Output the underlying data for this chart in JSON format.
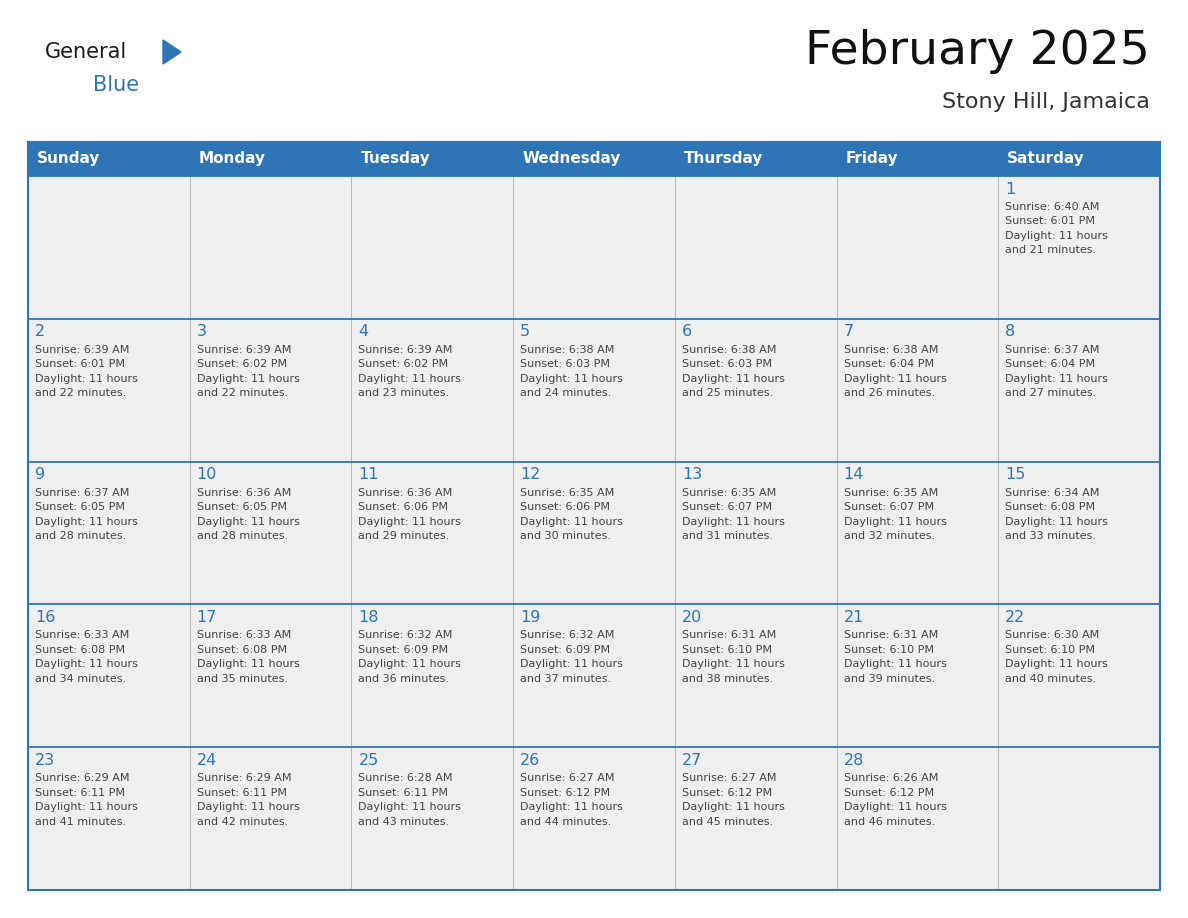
{
  "title": "February 2025",
  "subtitle": "Stony Hill, Jamaica",
  "header_bg": "#2E75B6",
  "header_text_color": "#FFFFFF",
  "cell_bg": "#EFEFEF",
  "day_number_color": "#2E75B6",
  "text_color": "#444444",
  "line_color": "#2E75B6",
  "grid_line_color": "#BBBBBB",
  "days_of_week": [
    "Sunday",
    "Monday",
    "Tuesday",
    "Wednesday",
    "Thursday",
    "Friday",
    "Saturday"
  ],
  "calendar_data": [
    [
      null,
      null,
      null,
      null,
      null,
      null,
      {
        "day": 1,
        "sunrise": "6:40 AM",
        "sunset": "6:01 PM",
        "daylight": "11 hours",
        "daylight2": "and 21 minutes."
      }
    ],
    [
      {
        "day": 2,
        "sunrise": "6:39 AM",
        "sunset": "6:01 PM",
        "daylight": "11 hours",
        "daylight2": "and 22 minutes."
      },
      {
        "day": 3,
        "sunrise": "6:39 AM",
        "sunset": "6:02 PM",
        "daylight": "11 hours",
        "daylight2": "and 22 minutes."
      },
      {
        "day": 4,
        "sunrise": "6:39 AM",
        "sunset": "6:02 PM",
        "daylight": "11 hours",
        "daylight2": "and 23 minutes."
      },
      {
        "day": 5,
        "sunrise": "6:38 AM",
        "sunset": "6:03 PM",
        "daylight": "11 hours",
        "daylight2": "and 24 minutes."
      },
      {
        "day": 6,
        "sunrise": "6:38 AM",
        "sunset": "6:03 PM",
        "daylight": "11 hours",
        "daylight2": "and 25 minutes."
      },
      {
        "day": 7,
        "sunrise": "6:38 AM",
        "sunset": "6:04 PM",
        "daylight": "11 hours",
        "daylight2": "and 26 minutes."
      },
      {
        "day": 8,
        "sunrise": "6:37 AM",
        "sunset": "6:04 PM",
        "daylight": "11 hours",
        "daylight2": "and 27 minutes."
      }
    ],
    [
      {
        "day": 9,
        "sunrise": "6:37 AM",
        "sunset": "6:05 PM",
        "daylight": "11 hours",
        "daylight2": "and 28 minutes."
      },
      {
        "day": 10,
        "sunrise": "6:36 AM",
        "sunset": "6:05 PM",
        "daylight": "11 hours",
        "daylight2": "and 28 minutes."
      },
      {
        "day": 11,
        "sunrise": "6:36 AM",
        "sunset": "6:06 PM",
        "daylight": "11 hours",
        "daylight2": "and 29 minutes."
      },
      {
        "day": 12,
        "sunrise": "6:35 AM",
        "sunset": "6:06 PM",
        "daylight": "11 hours",
        "daylight2": "and 30 minutes."
      },
      {
        "day": 13,
        "sunrise": "6:35 AM",
        "sunset": "6:07 PM",
        "daylight": "11 hours",
        "daylight2": "and 31 minutes."
      },
      {
        "day": 14,
        "sunrise": "6:35 AM",
        "sunset": "6:07 PM",
        "daylight": "11 hours",
        "daylight2": "and 32 minutes."
      },
      {
        "day": 15,
        "sunrise": "6:34 AM",
        "sunset": "6:08 PM",
        "daylight": "11 hours",
        "daylight2": "and 33 minutes."
      }
    ],
    [
      {
        "day": 16,
        "sunrise": "6:33 AM",
        "sunset": "6:08 PM",
        "daylight": "11 hours",
        "daylight2": "and 34 minutes."
      },
      {
        "day": 17,
        "sunrise": "6:33 AM",
        "sunset": "6:08 PM",
        "daylight": "11 hours",
        "daylight2": "and 35 minutes."
      },
      {
        "day": 18,
        "sunrise": "6:32 AM",
        "sunset": "6:09 PM",
        "daylight": "11 hours",
        "daylight2": "and 36 minutes."
      },
      {
        "day": 19,
        "sunrise": "6:32 AM",
        "sunset": "6:09 PM",
        "daylight": "11 hours",
        "daylight2": "and 37 minutes."
      },
      {
        "day": 20,
        "sunrise": "6:31 AM",
        "sunset": "6:10 PM",
        "daylight": "11 hours",
        "daylight2": "and 38 minutes."
      },
      {
        "day": 21,
        "sunrise": "6:31 AM",
        "sunset": "6:10 PM",
        "daylight": "11 hours",
        "daylight2": "and 39 minutes."
      },
      {
        "day": 22,
        "sunrise": "6:30 AM",
        "sunset": "6:10 PM",
        "daylight": "11 hours",
        "daylight2": "and 40 minutes."
      }
    ],
    [
      {
        "day": 23,
        "sunrise": "6:29 AM",
        "sunset": "6:11 PM",
        "daylight": "11 hours",
        "daylight2": "and 41 minutes."
      },
      {
        "day": 24,
        "sunrise": "6:29 AM",
        "sunset": "6:11 PM",
        "daylight": "11 hours",
        "daylight2": "and 42 minutes."
      },
      {
        "day": 25,
        "sunrise": "6:28 AM",
        "sunset": "6:11 PM",
        "daylight": "11 hours",
        "daylight2": "and 43 minutes."
      },
      {
        "day": 26,
        "sunrise": "6:27 AM",
        "sunset": "6:12 PM",
        "daylight": "11 hours",
        "daylight2": "and 44 minutes."
      },
      {
        "day": 27,
        "sunrise": "6:27 AM",
        "sunset": "6:12 PM",
        "daylight": "11 hours",
        "daylight2": "and 45 minutes."
      },
      {
        "day": 28,
        "sunrise": "6:26 AM",
        "sunset": "6:12 PM",
        "daylight": "11 hours",
        "daylight2": "and 46 minutes."
      },
      null
    ]
  ],
  "logo_text_general": "General",
  "logo_text_blue": "Blue",
  "logo_triangle_color": "#2E75B6",
  "fig_width": 11.88,
  "fig_height": 9.18,
  "dpi": 100
}
